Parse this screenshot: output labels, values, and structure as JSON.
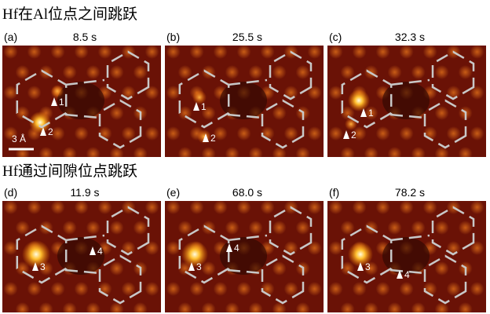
{
  "rows": [
    {
      "title": "Hf在Al位点之间跳跃",
      "panels": [
        {
          "label": "(a)",
          "time": "8.5 s",
          "markers": [
            "1",
            "2"
          ]
        },
        {
          "label": "(b)",
          "time": "25.5 s",
          "markers": [
            "1",
            "2"
          ]
        },
        {
          "label": "(c)",
          "time": "32.3 s",
          "markers": [
            "1",
            "2"
          ]
        }
      ]
    },
    {
      "title": "Hf通过间隙位点跳跃",
      "panels": [
        {
          "label": "(d)",
          "time": "11.9 s",
          "markers": [
            "3",
            "4"
          ]
        },
        {
          "label": "(e)",
          "time": "68.0 s",
          "markers": [
            "3",
            "4"
          ]
        },
        {
          "label": "(f)",
          "time": "78.2 s",
          "markers": [
            "3",
            "4"
          ]
        }
      ]
    }
  ],
  "scale_bar": "3 Å"
}
